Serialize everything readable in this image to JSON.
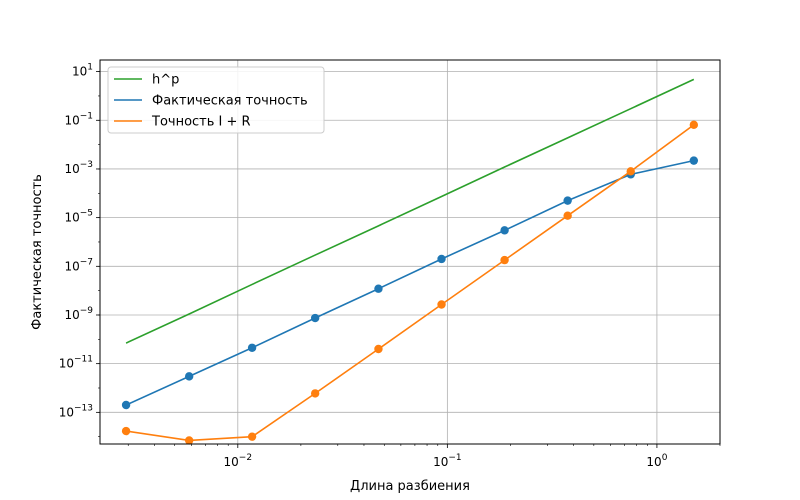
{
  "chart_data": {
    "type": "line",
    "xscale": "log",
    "yscale": "log",
    "xlabel": "Длина разбиения",
    "ylabel": "Фактическая точность",
    "xlim": [
      0.0022,
      2.0
    ],
    "ylim": [
      5e-15,
      30
    ],
    "x_ticks": [
      {
        "value": 0.01,
        "base": "10",
        "exp": "−2"
      },
      {
        "value": 0.1,
        "base": "10",
        "exp": "−1"
      },
      {
        "value": 1,
        "base": "10",
        "exp": "0"
      }
    ],
    "y_ticks": [
      {
        "value": 10,
        "base": "10",
        "exp": "1"
      },
      {
        "value": 0.1,
        "base": "10",
        "exp": "−1"
      },
      {
        "value": 0.001,
        "base": "10",
        "exp": "−3"
      },
      {
        "value": 1e-05,
        "base": "10",
        "exp": "−5"
      },
      {
        "value": 1e-07,
        "base": "10",
        "exp": "−7"
      },
      {
        "value": 1e-09,
        "base": "10",
        "exp": "−9"
      },
      {
        "value": 1e-11,
        "base": "10",
        "exp": "−11"
      },
      {
        "value": 1e-13,
        "base": "10",
        "exp": "−13"
      }
    ],
    "grid": true,
    "legend_position": "top-left",
    "x": [
      0.00293,
      0.00586,
      0.0117,
      0.0234,
      0.0469,
      0.0938,
      0.1875,
      0.375,
      0.75,
      1.5
    ],
    "series": [
      {
        "name": "h^p",
        "color": "#2ca02c",
        "markers": false,
        "values": [
          7e-11,
          1.1e-09,
          1.8e-08,
          2.9e-07,
          4.6e-06,
          7.4e-05,
          0.0012,
          0.019,
          0.3,
          4.8
        ]
      },
      {
        "name": "Фактическая точность",
        "color": "#1f77b4",
        "markers": true,
        "values": [
          2e-13,
          3e-12,
          4.5e-11,
          7.5e-10,
          1.2e-08,
          2e-07,
          3e-06,
          5e-05,
          0.0006,
          0.0022
        ]
      },
      {
        "name": "Точность I + R",
        "color": "#ff7f0e",
        "markers": true,
        "values": [
          1.7e-14,
          7e-15,
          1e-14,
          6e-13,
          4e-11,
          2.7e-09,
          1.8e-07,
          1.2e-05,
          0.0008,
          0.065
        ]
      }
    ]
  }
}
